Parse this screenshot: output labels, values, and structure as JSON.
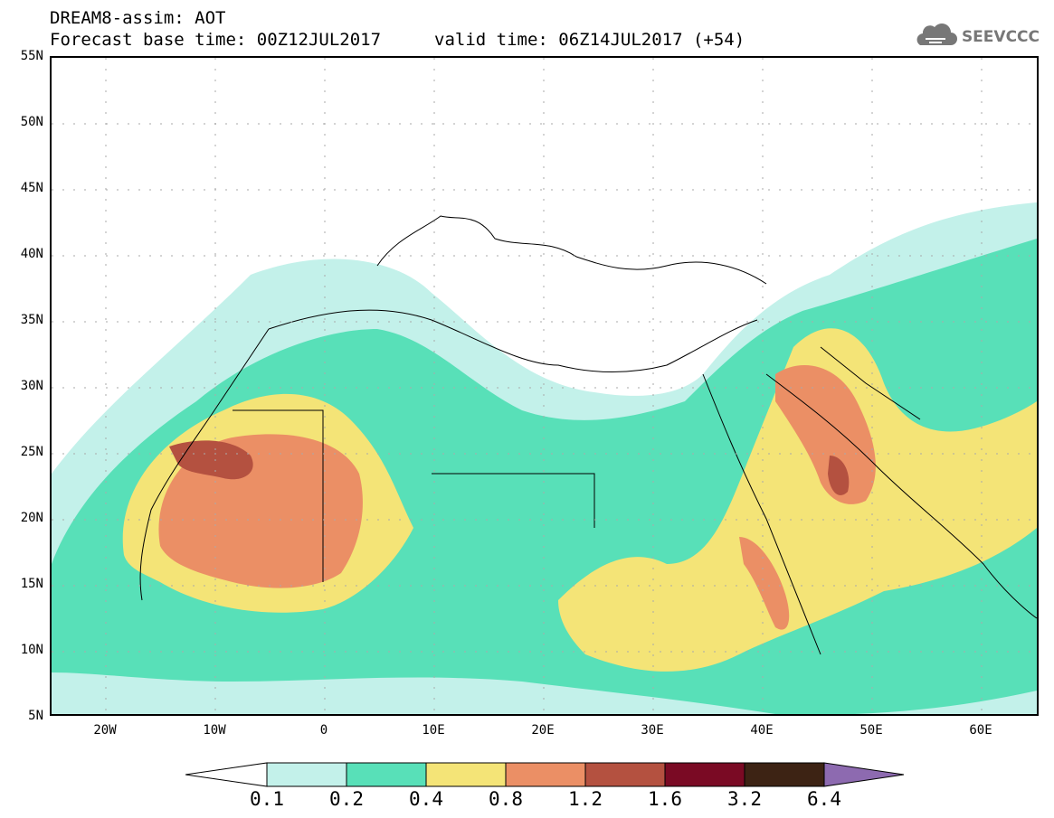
{
  "header": {
    "title_line1": "DREAM8-assim: AOT",
    "title_line2": "Forecast base time: 00Z12JUL2017",
    "valid_time": "valid time: 06Z14JUL2017 (+54)"
  },
  "logo": {
    "icon": "cloud-icon",
    "text": "SEEVCCC",
    "color": "#777777"
  },
  "map": {
    "lat_labels": [
      "55N",
      "50N",
      "45N",
      "40N",
      "35N",
      "30N",
      "25N",
      "20N",
      "15N",
      "10N",
      "5N"
    ],
    "lon_labels": [
      "20W",
      "10W",
      "0",
      "10E",
      "20E",
      "30E",
      "40E",
      "50E",
      "60E"
    ],
    "lon_range": [
      -25,
      65
    ],
    "lat_range": [
      5,
      55
    ]
  },
  "colorbar": {
    "levels": [
      "0.1",
      "0.2",
      "0.4",
      "0.8",
      "1.2",
      "1.6",
      "3.2",
      "6.4"
    ],
    "colors": [
      "#ffffff",
      "#c3f1ea",
      "#58e0b8",
      "#f4e477",
      "#eb8f65",
      "#b45140",
      "#7a0a24",
      "#3d2314",
      "#8d6ab0"
    ]
  }
}
